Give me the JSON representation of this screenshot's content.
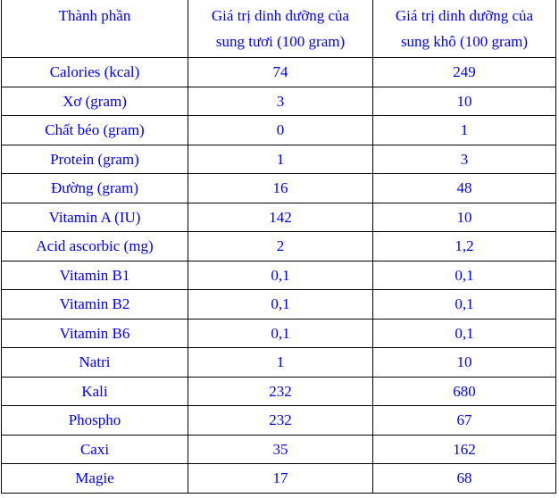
{
  "table": {
    "header": {
      "col1": {
        "line1": "Thành phần",
        "line2": ""
      },
      "col2": {
        "line1": "Giá trị dinh dưỡng của",
        "line2": "sung tươi (100 gram)"
      },
      "col3": {
        "line1": "Giá trị dinh dưỡng của",
        "line2": "sung khô (100 gram)"
      }
    },
    "rows": [
      {
        "name": "Calories (kcal)",
        "fresh": "74",
        "dry": "249"
      },
      {
        "name": "Xơ (gram)",
        "fresh": "3",
        "dry": "10"
      },
      {
        "name": "Chất béo (gram)",
        "fresh": "0",
        "dry": "1"
      },
      {
        "name": "Protein (gram)",
        "fresh": "1",
        "dry": "3"
      },
      {
        "name": "Đường (gram)",
        "fresh": "16",
        "dry": "48"
      },
      {
        "name": "Vitamin A (IU)",
        "fresh": "142",
        "dry": "10"
      },
      {
        "name": "Acid ascorbic (mg)",
        "fresh": "2",
        "dry": "1,2"
      },
      {
        "name": "Vitamin B1",
        "fresh": "0,1",
        "dry": "0,1"
      },
      {
        "name": "Vitamin B2",
        "fresh": "0,1",
        "dry": "0,1"
      },
      {
        "name": "Vitamin B6",
        "fresh": "0,1",
        "dry": "0,1"
      },
      {
        "name": "Natri",
        "fresh": "1",
        "dry": "10"
      },
      {
        "name": "Kali",
        "fresh": "232",
        "dry": "680"
      },
      {
        "name": "Phospho",
        "fresh": "232",
        "dry": "67"
      },
      {
        "name": "Caxi",
        "fresh": "35",
        "dry": "162"
      },
      {
        "name": "Magie",
        "fresh": "17",
        "dry": "68"
      }
    ]
  },
  "colors": {
    "text": "#0000f0",
    "border": "#000000",
    "background": "#ffffff"
  }
}
